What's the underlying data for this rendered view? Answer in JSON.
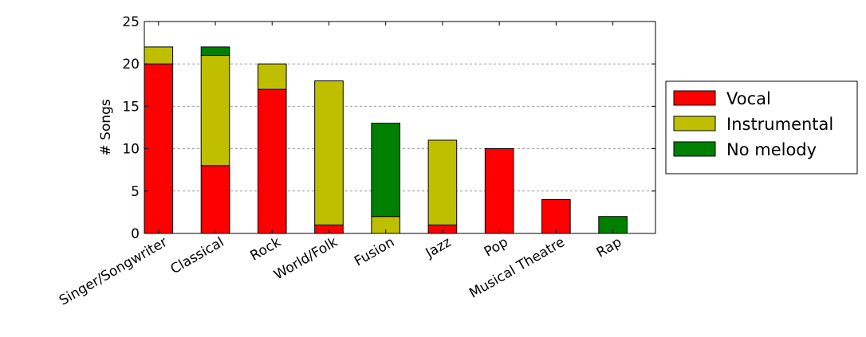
{
  "chart_data": {
    "type": "bar",
    "stacked": true,
    "title": "",
    "xlabel": "",
    "ylabel": "# Songs",
    "ylim": [
      0,
      25
    ],
    "yticks": [
      0,
      5,
      10,
      15,
      20,
      25
    ],
    "grid": "horizontal dashed",
    "legend_position": "right",
    "categories": [
      "Singer/Songwriter",
      "Classical",
      "Rock",
      "World/Folk",
      "Fusion",
      "Jazz",
      "Pop",
      "Musical Theatre",
      "Rap"
    ],
    "series": [
      {
        "name": "Vocal",
        "color": "#ff0000",
        "values": [
          20,
          8,
          17,
          1,
          0,
          1,
          10,
          4,
          0
        ]
      },
      {
        "name": "Instrumental",
        "color": "#bfbf00",
        "values": [
          2,
          13,
          3,
          17,
          2,
          10,
          0,
          0,
          0
        ]
      },
      {
        "name": "No melody",
        "color": "#008000",
        "values": [
          0,
          1,
          0,
          0,
          11,
          0,
          0,
          0,
          2
        ]
      }
    ]
  }
}
